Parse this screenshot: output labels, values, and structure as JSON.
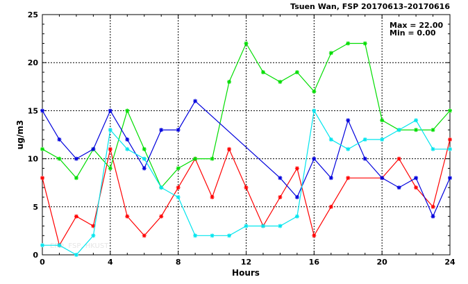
{
  "chart_data": {
    "type": "line",
    "title": "Tsuen Wan, FSP 20170613–20170616",
    "xlabel": "Hours",
    "ylabel": "ug/m3",
    "xlim": [
      0,
      24
    ],
    "ylim": [
      0,
      25
    ],
    "x_ticks": [
      0,
      4,
      8,
      12,
      16,
      20,
      24
    ],
    "y_ticks": [
      0,
      5,
      10,
      15,
      20,
      25
    ],
    "grid": true,
    "stats": {
      "max_label": "Max = 22.00",
      "min_label": "Min =  0.00"
    },
    "watermark": "EPD, FSP, HKUST",
    "series": [
      {
        "color": "#ff0000",
        "points": [
          [
            0,
            8
          ],
          [
            1,
            1
          ],
          [
            2,
            4
          ],
          [
            3,
            3
          ],
          [
            4,
            11
          ],
          [
            5,
            4
          ],
          [
            6,
            2
          ],
          [
            7,
            4
          ],
          [
            8,
            7
          ],
          [
            9,
            10
          ],
          [
            10,
            6
          ],
          [
            11,
            11
          ],
          [
            12,
            7
          ],
          [
            13,
            3
          ],
          [
            14,
            6
          ],
          [
            15,
            9
          ],
          [
            16,
            2
          ],
          [
            17,
            5
          ],
          [
            18,
            8
          ],
          [
            20,
            8
          ],
          [
            21,
            10
          ],
          [
            22,
            7
          ],
          [
            23,
            5
          ],
          [
            24,
            12
          ]
        ]
      },
      {
        "color": "#00dd00",
        "points": [
          [
            0,
            11
          ],
          [
            1,
            10
          ],
          [
            2,
            8
          ],
          [
            3,
            11
          ],
          [
            4,
            9
          ],
          [
            5,
            15
          ],
          [
            6,
            11
          ],
          [
            7,
            7
          ],
          [
            8,
            9
          ],
          [
            9,
            10
          ],
          [
            10,
            10
          ],
          [
            11,
            18
          ],
          [
            12,
            22
          ],
          [
            13,
            19
          ],
          [
            14,
            18
          ],
          [
            15,
            19
          ],
          [
            16,
            17
          ],
          [
            17,
            21
          ],
          [
            18,
            22
          ],
          [
            19,
            22
          ],
          [
            20,
            14
          ],
          [
            21,
            13
          ],
          [
            22,
            13
          ],
          [
            23,
            13
          ],
          [
            24,
            15
          ]
        ]
      },
      {
        "color": "#0000dd",
        "points": [
          [
            0,
            15
          ],
          [
            1,
            12
          ],
          [
            2,
            10
          ],
          [
            3,
            11
          ],
          [
            4,
            15
          ],
          [
            5,
            12
          ],
          [
            6,
            9
          ],
          [
            7,
            13
          ],
          [
            8,
            13
          ],
          [
            9,
            16
          ],
          [
            14,
            8
          ],
          [
            15,
            6
          ],
          [
            16,
            10
          ],
          [
            17,
            8
          ],
          [
            18,
            14
          ],
          [
            19,
            10
          ],
          [
            20,
            8
          ],
          [
            21,
            7
          ],
          [
            22,
            8
          ],
          [
            23,
            4
          ],
          [
            24,
            8
          ]
        ]
      },
      {
        "color": "#00e5ee",
        "points": [
          [
            0,
            1
          ],
          [
            1,
            1
          ],
          [
            2,
            0
          ],
          [
            3,
            2
          ],
          [
            4,
            13
          ],
          [
            5,
            11
          ],
          [
            6,
            10
          ],
          [
            7,
            7
          ],
          [
            8,
            6
          ],
          [
            9,
            2
          ],
          [
            10,
            2
          ],
          [
            11,
            2
          ],
          [
            12,
            3
          ],
          [
            13,
            3
          ],
          [
            14,
            3
          ],
          [
            15,
            4
          ],
          [
            16,
            15
          ],
          [
            17,
            12
          ],
          [
            18,
            11
          ],
          [
            19,
            12
          ],
          [
            20,
            12
          ],
          [
            21,
            13
          ],
          [
            22,
            14
          ],
          [
            23,
            11
          ],
          [
            24,
            11
          ]
        ]
      }
    ]
  }
}
